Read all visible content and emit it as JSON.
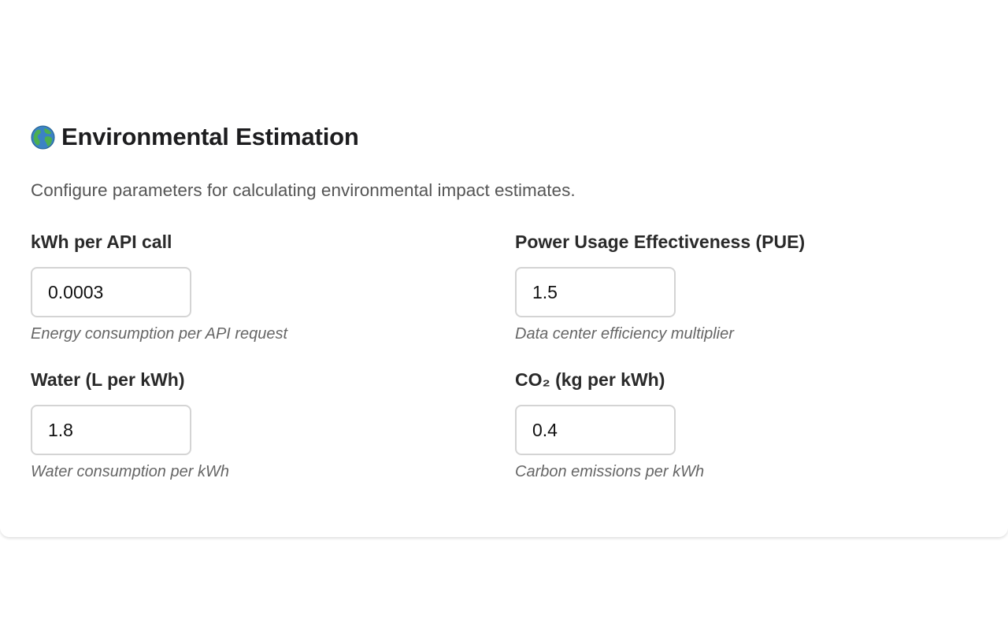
{
  "section": {
    "icon": "globe-icon",
    "title": "Environmental Estimation",
    "description": "Configure parameters for calculating environmental impact estimates."
  },
  "fields": [
    {
      "label": "kWh per API call",
      "value": "0.0003",
      "hint": "Energy consumption per API request"
    },
    {
      "label": "Power Usage Effectiveness (PUE)",
      "value": "1.5",
      "hint": "Data center efficiency multiplier"
    },
    {
      "label": "Water (L per kWh)",
      "value": "1.8",
      "hint": "Water consumption per kWh"
    },
    {
      "label": "CO₂ (kg per kWh)",
      "value": "0.4",
      "hint": "Carbon emissions per kWh"
    }
  ],
  "colors": {
    "input_border": "#d4d4d4",
    "hint_text": "#666666",
    "description_text": "#555555"
  }
}
